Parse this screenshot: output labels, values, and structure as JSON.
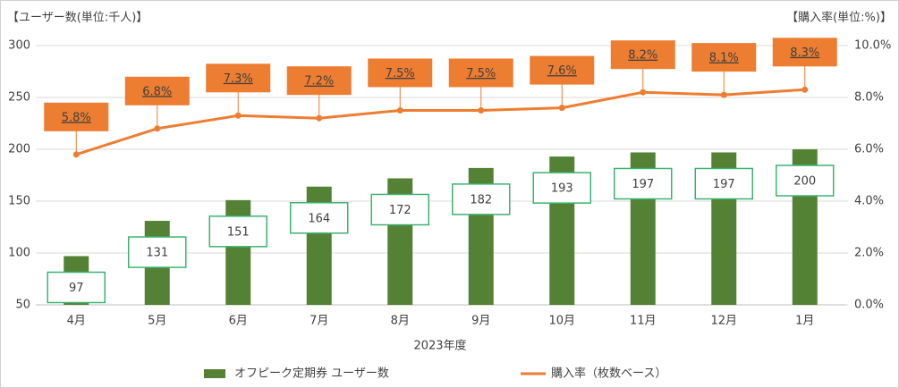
{
  "chart_data": {
    "type": "bar_line",
    "y_axis_label": "【ユーザー数(単位:千人)】",
    "y2_axis_label": "【購入率(単位:%)】",
    "x_axis_label": "2023年度",
    "categories": [
      "4月",
      "5月",
      "6月",
      "7月",
      "8月",
      "9月",
      "10月",
      "11月",
      "12月",
      "1月"
    ],
    "series": [
      {
        "name": "オフピーク定期券 ユーザー数",
        "color": "#548235",
        "type": "bar",
        "values": [
          97,
          131,
          151,
          164,
          172,
          182,
          193,
          197,
          197,
          200
        ]
      },
      {
        "name": "購入率（枚数ベース）",
        "color": "#ed7d31",
        "type": "line",
        "axis": "y2",
        "values": [
          5.8,
          6.8,
          7.3,
          7.2,
          7.5,
          7.5,
          7.6,
          8.2,
          8.1,
          8.3
        ],
        "value_labels": [
          "5.8%",
          "6.8%",
          "7.3%",
          "7.2%",
          "7.5%",
          "7.5%",
          "7.6%",
          "8.2%",
          "8.1%",
          "8.3%"
        ]
      }
    ],
    "ylim": [
      50,
      300
    ],
    "yticks": [
      50,
      100,
      150,
      200,
      250,
      300
    ],
    "y2lim": [
      0,
      10
    ],
    "y2ticks": [
      {
        "value": 0,
        "label": "0.0%"
      },
      {
        "value": 2,
        "label": "2.0%"
      },
      {
        "value": 4,
        "label": "4.0%"
      },
      {
        "value": 6,
        "label": "6.0%"
      },
      {
        "value": 8,
        "label": "8.0%"
      },
      {
        "value": 10,
        "label": "10.0%"
      }
    ],
    "grid": true
  }
}
